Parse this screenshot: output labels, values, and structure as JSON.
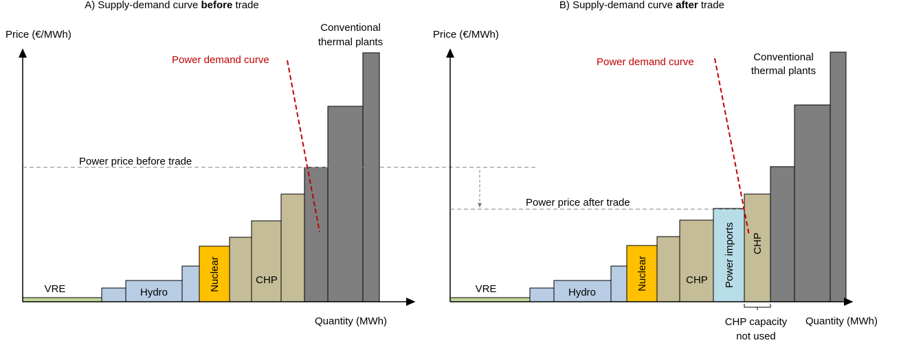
{
  "panels": [
    {
      "title": {
        "lead": "A) Supply-demand  curve",
        "emphasis": "before",
        "tail": "trade"
      },
      "y_axis_label": "Price (€/MWh)",
      "x_axis_label": "Quantity (MWh)",
      "demand_label": "Power demand curve",
      "price_label": "Power price before trade",
      "bar_labels": {
        "vre": "VRE",
        "hydro": "Hydro",
        "nuclear": "Nuclear",
        "chp": "CHP"
      },
      "thermal_label": [
        "Conventional",
        "thermal plants"
      ]
    },
    {
      "title": {
        "lead": "B) Supply-demand  curve",
        "emphasis": "after",
        "tail": "trade"
      },
      "y_axis_label": "Price (€/MWh)",
      "x_axis_label": "Quantity (MWh)",
      "demand_label": "Power demand curve",
      "price_label": "Power price after trade",
      "bar_labels": {
        "vre": "VRE",
        "hydro": "Hydro",
        "nuclear": "Nuclear",
        "chp": "CHP",
        "imports": "Power imports",
        "chp2": "CHP"
      },
      "thermal_label": [
        "Conventional",
        "thermal plants"
      ],
      "unused_label": [
        "CHP capacity",
        "not used"
      ]
    }
  ]
}
